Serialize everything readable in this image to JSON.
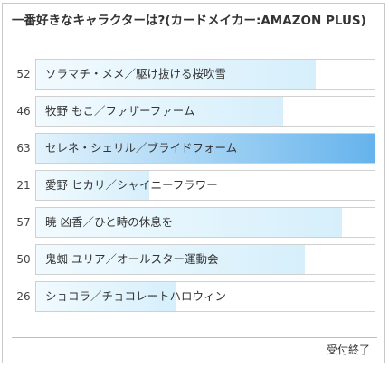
{
  "poll": {
    "title": "一番好きなキャラクターは?(カードメイカー:AMAZON PLUS)",
    "status": "受付終了",
    "options": [
      {
        "count": "52",
        "label": "ソラマチ・メメ／駆け抜ける桜吹雪",
        "fraction": 0.825
      },
      {
        "count": "46",
        "label": "牧野 もこ／ファザーファーム",
        "fraction": 0.73
      },
      {
        "count": "63",
        "label": "セレネ・シェリル／ブライドフォーム",
        "fraction": 1.0,
        "top": true
      },
      {
        "count": "21",
        "label": "愛野 ヒカリ／シャイニーフラワー",
        "fraction": 0.333
      },
      {
        "count": "57",
        "label": "暁 凶香／ひと時の休息を",
        "fraction": 0.905
      },
      {
        "count": "50",
        "label": "鬼蜘 ユリア／オールスター運動会",
        "fraction": 0.794
      },
      {
        "count": "26",
        "label": "ショコラ／チョコレートハロウィン",
        "fraction": 0.413
      }
    ]
  }
}
